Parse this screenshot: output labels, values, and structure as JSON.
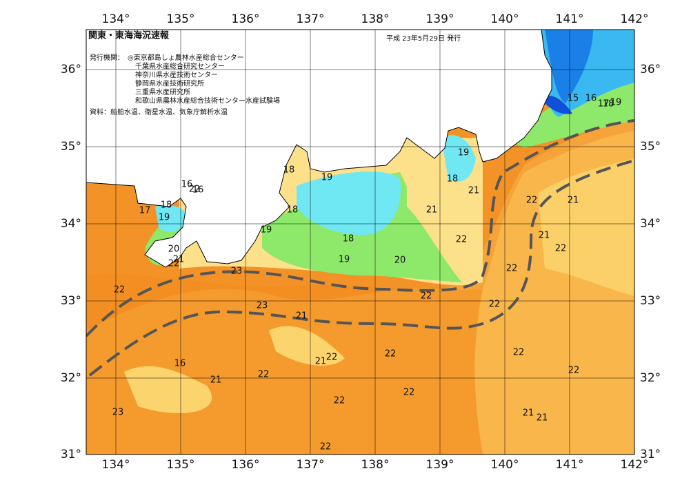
{
  "header": {
    "title": "関東・東海海況速報",
    "date": "平成 23年5月29日 発行",
    "issuer_label": "発行機関：",
    "issuers": [
      "◎東京都島しょ農林水産総合センター",
      "千葉県水産総合研究センター",
      "神奈川県水産技術センター",
      "静岡県水産技術研究所",
      "三重県水産研究所",
      "和歌山県農林水産総合技術センター水産試験場"
    ],
    "source": "資料：船舶水温、衛星水温、気象庁解析水温"
  },
  "axes": {
    "longitudes": [
      "134°",
      "135°",
      "136°",
      "137°",
      "138°",
      "139°",
      "140°",
      "141°",
      "142°"
    ],
    "latitudes": [
      "36°",
      "35°",
      "34°",
      "33°",
      "32°",
      "31°"
    ]
  },
  "contour_labels": [
    "15",
    "16",
    "17",
    "18",
    "19",
    "19",
    "18",
    "21",
    "22",
    "21",
    "21",
    "22",
    "21",
    "22",
    "22",
    "22",
    "22",
    "18",
    "19",
    "18",
    "19",
    "18",
    "19",
    "20",
    "23",
    "22",
    "23",
    "21",
    "16",
    "16",
    "16",
    "17",
    "18",
    "19",
    "20",
    "21",
    "22",
    "21",
    "22",
    "22",
    "21",
    "22",
    "22",
    "22",
    "23",
    "22",
    "22",
    "22",
    "21",
    "21",
    "22"
  ]
}
